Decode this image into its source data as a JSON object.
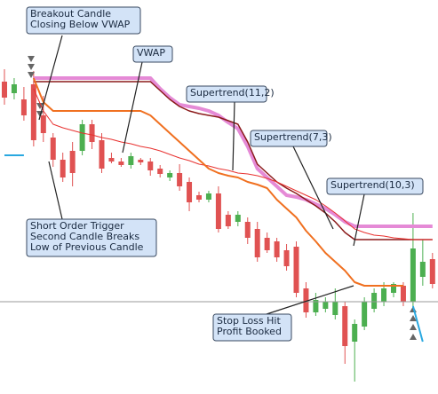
{
  "chart_data": {
    "type": "candlestick",
    "ylim": [
      56,
      500
    ],
    "up_color": "#4caf50",
    "down_color": "#e05252",
    "open": [
      408,
      395,
      388,
      405,
      370,
      345,
      320,
      330,
      330,
      360,
      342,
      322,
      318,
      314,
      320,
      318,
      310,
      300,
      305,
      295,
      280,
      275,
      282,
      258,
      250,
      250,
      242,
      232,
      228,
      218,
      222,
      175,
      148,
      152,
      145,
      155,
      115,
      132,
      152,
      160,
      170,
      178,
      160,
      188,
      208
    ],
    "high": [
      422,
      412,
      402,
      420,
      392,
      350,
      328,
      340,
      365,
      365,
      350,
      328,
      322,
      328,
      322,
      322,
      314,
      308,
      315,
      300,
      284,
      285,
      290,
      262,
      262,
      255,
      250,
      238,
      232,
      225,
      228,
      182,
      170,
      165,
      175,
      160,
      140,
      165,
      175,
      182,
      182,
      182,
      260,
      230,
      215
    ],
    "low": [
      382,
      388,
      364,
      335,
      340,
      312,
      295,
      290,
      325,
      332,
      305,
      316,
      312,
      310,
      314,
      302,
      300,
      296,
      285,
      262,
      272,
      272,
      238,
      242,
      245,
      225,
      205,
      215,
      205,
      195,
      165,
      142,
      144,
      148,
      140,
      90,
      70,
      128,
      148,
      155,
      165,
      155,
      155,
      178,
      175
    ],
    "close": [
      390,
      405,
      370,
      342,
      350,
      320,
      300,
      305,
      360,
      340,
      310,
      318,
      314,
      324,
      317,
      308,
      304,
      305,
      290,
      272,
      275,
      282,
      242,
      245,
      258,
      232,
      210,
      218,
      210,
      200,
      170,
      148,
      162,
      160,
      160,
      110,
      135,
      160,
      170,
      175,
      180,
      160,
      220,
      205,
      180
    ],
    "series": [
      {
        "color": "#e58ad6",
        "width": 4,
        "values": [
          null,
          null,
          null,
          412,
          412,
          412,
          412,
          412,
          412,
          412,
          412,
          412,
          412,
          412,
          412,
          412,
          400,
          390,
          382,
          380,
          378,
          375,
          370,
          362,
          355,
          335,
          310,
          300,
          290,
          280,
          278,
          275,
          270,
          265,
          258,
          250,
          245,
          245,
          245,
          245,
          245,
          245,
          245,
          245,
          245
        ]
      },
      {
        "color": "#8b1a1a",
        "width": 1.5,
        "values": [
          null,
          null,
          null,
          408,
          408,
          408,
          408,
          408,
          408,
          408,
          408,
          408,
          408,
          408,
          408,
          408,
          398,
          388,
          380,
          375,
          372,
          370,
          368,
          364,
          360,
          340,
          315,
          305,
          295,
          288,
          282,
          275,
          268,
          260,
          250,
          238,
          230,
          230,
          230,
          230,
          230,
          230,
          230,
          230,
          230
        ]
      },
      {
        "color": "#e8312f",
        "width": 1,
        "values": [
          null,
          null,
          null,
          400,
          375,
          360,
          356,
          353,
          350,
          348,
          345,
          343,
          340,
          338,
          335,
          333,
          330,
          326,
          322,
          319,
          315,
          313,
          310,
          308,
          305,
          304,
          302,
          299,
          295,
          290,
          285,
          280,
          275,
          268,
          260,
          251,
          242,
          238,
          235,
          234,
          232,
          231,
          230,
          230,
          230
        ]
      },
      {
        "color": "#f07020",
        "width": 2,
        "values": [
          null,
          null,
          null,
          412,
          385,
          375,
          375,
          375,
          375,
          375,
          375,
          375,
          375,
          375,
          375,
          370,
          360,
          350,
          340,
          330,
          320,
          310,
          305,
          302,
          300,
          295,
          292,
          288,
          275,
          265,
          255,
          240,
          228,
          215,
          205,
          195,
          182,
          178,
          178,
          178,
          178,
          178,
          null,
          null,
          null
        ]
      },
      {
        "color": "#29a8e0",
        "width": 2,
        "values": [
          325,
          325,
          325,
          null,
          null,
          null,
          null,
          null,
          null,
          null,
          null,
          null,
          null,
          null,
          null,
          null,
          null,
          null,
          null,
          null,
          null,
          null,
          null,
          null,
          null,
          null,
          null,
          null,
          null,
          null,
          null,
          null,
          null,
          null,
          null,
          null,
          null,
          null,
          null,
          null,
          null,
          null,
          155,
          115,
          null
        ]
      }
    ],
    "annotations": [
      {
        "lines": [
          "Breakout Candle",
          "Closing Below VWAP"
        ]
      },
      {
        "lines": [
          "VWAP"
        ]
      },
      {
        "lines": [
          "Supertrend(11,2)"
        ]
      },
      {
        "lines": [
          "Supertrend(7,3)"
        ]
      },
      {
        "lines": [
          "Supertrend(10,3)"
        ]
      },
      {
        "lines": [
          "Short Order Trigger",
          "Second Candle Breaks",
          "Low of Previous Candle"
        ]
      },
      {
        "lines": [
          "Stop Loss Hit",
          "Profit Booked"
        ]
      }
    ]
  }
}
